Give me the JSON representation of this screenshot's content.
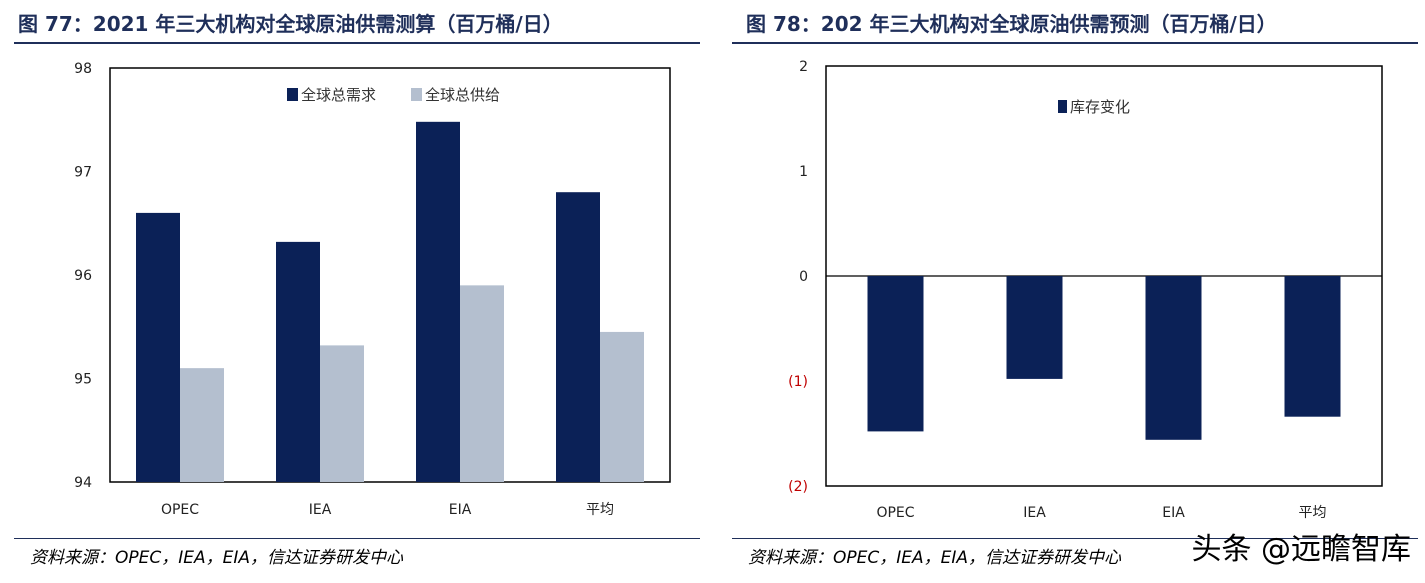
{
  "charts": [
    {
      "title": "图 77：2021 年三大机构对全球原油供需测算（百万桶/日）",
      "source": "资料来源：OPEC，IEA，EIA，信达证券研发中心"
    },
    {
      "title": "图 78：202 年三大机构对全球原油供需预测（百万桶/日）",
      "source": "资料来源：OPEC，IEA，EIA，信达证券研发中心"
    }
  ],
  "chart_data": [
    {
      "type": "bar",
      "categories": [
        "OPEC",
        "IEA",
        "EIA",
        "平均"
      ],
      "series": [
        {
          "name": "全球总需求",
          "values": [
            96.6,
            96.32,
            97.48,
            96.8
          ],
          "color": "#0b2157"
        },
        {
          "name": "全球总供给",
          "values": [
            95.1,
            95.32,
            95.9,
            95.45
          ],
          "color": "#b4bfcf"
        }
      ],
      "ylim": [
        94,
        98
      ],
      "yticks": [
        "94",
        "95",
        "96",
        "97",
        "98"
      ],
      "legend": "top-center",
      "grid": false
    },
    {
      "type": "bar",
      "categories": [
        "OPEC",
        "IEA",
        "EIA",
        "平均"
      ],
      "series": [
        {
          "name": "库存变化",
          "values": [
            -1.48,
            -0.98,
            -1.56,
            -1.34
          ],
          "color": "#0b2157"
        }
      ],
      "ylim": [
        -2,
        2
      ],
      "yticks": [
        "(2)",
        "(1)",
        "0",
        "1",
        "2"
      ],
      "legend": "top-center",
      "grid": false
    }
  ],
  "watermark": "头条 @远瞻智库"
}
